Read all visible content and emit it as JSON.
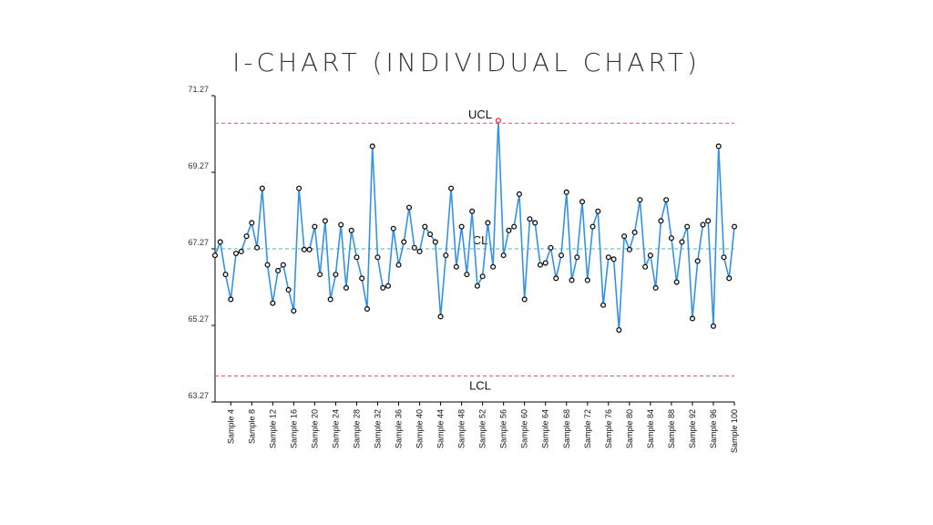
{
  "chart_data": {
    "type": "line",
    "title": "I-CHART (INDIVIDUAL CHART)",
    "ylim": [
      63.27,
      71.27
    ],
    "yticks": [
      "63.27",
      "65.27",
      "67.27",
      "69.27",
      "71.27"
    ],
    "xlabel_every": 4,
    "x": [
      "Sample 1",
      "Sample 2",
      "Sample 3",
      "Sample 4",
      "Sample 5",
      "Sample 6",
      "Sample 7",
      "Sample 8",
      "Sample 9",
      "Sample 10",
      "Sample 11",
      "Sample 12",
      "Sample 13",
      "Sample 14",
      "Sample 15",
      "Sample 16",
      "Sample 17",
      "Sample 18",
      "Sample 19",
      "Sample 20",
      "Sample 21",
      "Sample 22",
      "Sample 23",
      "Sample 24",
      "Sample 25",
      "Sample 26",
      "Sample 27",
      "Sample 28",
      "Sample 29",
      "Sample 30",
      "Sample 31",
      "Sample 32",
      "Sample 33",
      "Sample 34",
      "Sample 35",
      "Sample 36",
      "Sample 37",
      "Sample 38",
      "Sample 39",
      "Sample 40",
      "Sample 41",
      "Sample 42",
      "Sample 43",
      "Sample 44",
      "Sample 45",
      "Sample 46",
      "Sample 47",
      "Sample 48",
      "Sample 49",
      "Sample 50",
      "Sample 51",
      "Sample 52",
      "Sample 53",
      "Sample 54",
      "Sample 55",
      "Sample 56",
      "Sample 57",
      "Sample 58",
      "Sample 59",
      "Sample 60",
      "Sample 61",
      "Sample 62",
      "Sample 63",
      "Sample 64",
      "Sample 65",
      "Sample 66",
      "Sample 67",
      "Sample 68",
      "Sample 69",
      "Sample 70",
      "Sample 71",
      "Sample 72",
      "Sample 73",
      "Sample 74",
      "Sample 75",
      "Sample 76",
      "Sample 77",
      "Sample 78",
      "Sample 79",
      "Sample 80",
      "Sample 81",
      "Sample 82",
      "Sample 83",
      "Sample 84",
      "Sample 85",
      "Sample 86",
      "Sample 87",
      "Sample 88",
      "Sample 89",
      "Sample 90",
      "Sample 91",
      "Sample 92",
      "Sample 93",
      "Sample 94",
      "Sample 95",
      "Sample 96",
      "Sample 97",
      "Sample 98",
      "Sample 99",
      "Sample 100"
    ],
    "values": [
      67.1,
      67.45,
      66.6,
      65.95,
      67.15,
      67.2,
      67.6,
      67.95,
      67.3,
      68.85,
      66.85,
      65.85,
      66.7,
      66.85,
      66.2,
      65.65,
      68.85,
      67.25,
      67.25,
      67.85,
      66.6,
      68.0,
      65.95,
      66.6,
      67.9,
      66.25,
      67.75,
      67.05,
      66.5,
      65.7,
      69.95,
      67.05,
      66.25,
      66.3,
      67.8,
      66.85,
      67.45,
      68.35,
      67.3,
      67.2,
      67.85,
      67.65,
      67.45,
      65.5,
      67.1,
      68.85,
      66.8,
      67.85,
      66.6,
      68.25,
      66.3,
      66.55,
      67.95,
      66.8,
      70.62,
      67.1,
      67.75,
      67.85,
      68.7,
      65.95,
      68.05,
      67.95,
      66.85,
      66.9,
      67.3,
      66.5,
      67.1,
      68.75,
      66.45,
      67.05,
      68.5,
      66.45,
      67.85,
      68.25,
      65.8,
      67.05,
      67.0,
      65.15,
      67.6,
      67.25,
      67.7,
      68.55,
      66.8,
      67.1,
      66.25,
      68.0,
      68.55,
      67.55,
      66.4,
      67.45,
      67.85,
      65.45,
      66.95,
      67.9,
      68.0,
      65.25,
      69.95,
      67.05,
      66.5,
      67.85
    ],
    "series": [
      {
        "name": "",
        "color": "#3392e6"
      }
    ],
    "control_lines": [
      {
        "label": "UCL",
        "value": 70.55,
        "color": "#e05a5a"
      },
      {
        "label": "CL",
        "value": 67.27,
        "color": "#4fb3b3"
      },
      {
        "label": "LCL",
        "value": 63.95,
        "color": "#e05a5a"
      }
    ],
    "out_of_control_color": "#e8323c",
    "point_color": "#111111",
    "grid": false
  }
}
